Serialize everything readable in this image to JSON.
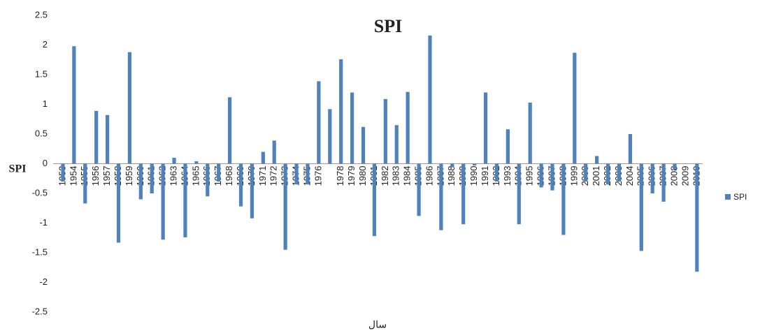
{
  "chart_data": {
    "type": "bar",
    "title": "SPI",
    "y_label": "SPI",
    "x_label": "سال",
    "legend": "right",
    "categories": [
      "1953",
      "1954",
      "1955",
      "1956",
      "1957",
      "1958",
      "1959",
      "1960",
      "1961",
      "1962",
      "1963",
      "1964",
      "1965",
      "1966",
      "1967",
      "1968",
      "1969",
      "1970",
      "1971",
      "1972",
      "1973",
      "1974",
      "1975",
      "1976",
      null,
      "1978",
      "1979",
      "1980",
      "1981",
      "1982",
      "1983",
      "1984",
      "1985",
      "1986",
      "1987",
      "1988",
      "1989",
      "1990",
      "1991",
      "1992",
      "1993",
      "1994",
      "1995",
      "1996",
      "1997",
      "1998",
      "1999",
      "2000",
      "2001",
      "2002",
      "2003",
      "2004",
      "2005",
      "2006",
      "2007",
      "2008",
      "2009",
      "2010"
    ],
    "series": [
      {
        "name": "SPI",
        "color": "#4f81bd",
        "values": [
          -0.3,
          1.98,
          -0.67,
          0.89,
          0.82,
          -1.33,
          1.88,
          -0.6,
          -0.5,
          -1.28,
          0.1,
          -1.24,
          0.04,
          -0.55,
          -0.3,
          1.12,
          -0.72,
          -0.92,
          0.2,
          0.39,
          -1.45,
          -0.35,
          -0.35,
          1.39,
          0.92,
          1.76,
          1.2,
          0.62,
          -1.22,
          1.09,
          0.65,
          1.21,
          -0.88,
          2.16,
          -1.12,
          -0.06,
          -1.02,
          -0.03,
          1.2,
          -0.3,
          0.58,
          -1.02,
          1.03,
          -0.4,
          -0.45,
          -1.2,
          1.87,
          -0.3,
          0.13,
          -0.35,
          -0.3,
          0.5,
          -1.47,
          -0.5,
          -0.64,
          -0.1,
          0,
          -1.82
        ]
      }
    ],
    "ylim": [
      -2.5,
      2.5
    ],
    "yticks": [
      -2.5,
      -2,
      -1.5,
      -1,
      -0.5,
      0,
      0.5,
      1,
      1.5,
      2,
      2.5
    ],
    "grid": false
  }
}
